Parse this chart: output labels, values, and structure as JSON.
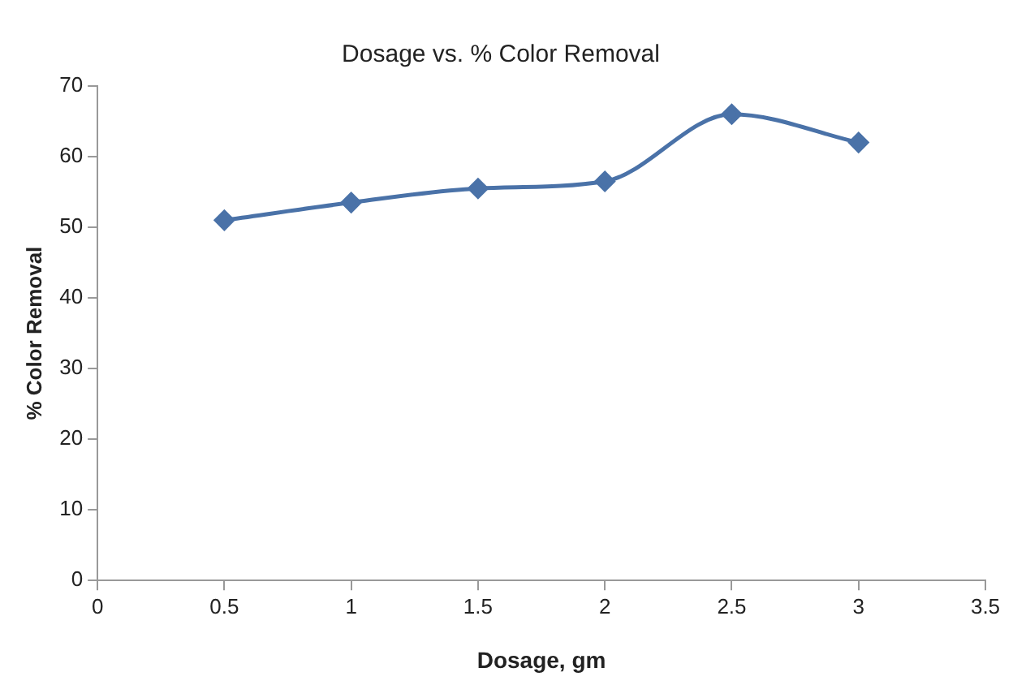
{
  "chart_data": {
    "type": "line",
    "title": "Dosage vs. % Color Removal",
    "xlabel": "Dosage, gm",
    "ylabel": "% Color Removal",
    "x": [
      0.5,
      1,
      1.5,
      2,
      2.5,
      3
    ],
    "series": [
      {
        "color": "#4a72a8",
        "values": [
          51,
          53.5,
          55.5,
          56.5,
          66,
          62
        ]
      }
    ],
    "xlim": [
      0,
      3.5
    ],
    "xticks": [
      0,
      0.5,
      1,
      1.5,
      2,
      2.5,
      3,
      3.5
    ],
    "ylim": [
      0,
      70
    ],
    "yticks": [
      0,
      10,
      20,
      30,
      40,
      50,
      60,
      70
    ],
    "grid": false,
    "legend": false,
    "marker": "diamond",
    "line_style": "solid"
  }
}
